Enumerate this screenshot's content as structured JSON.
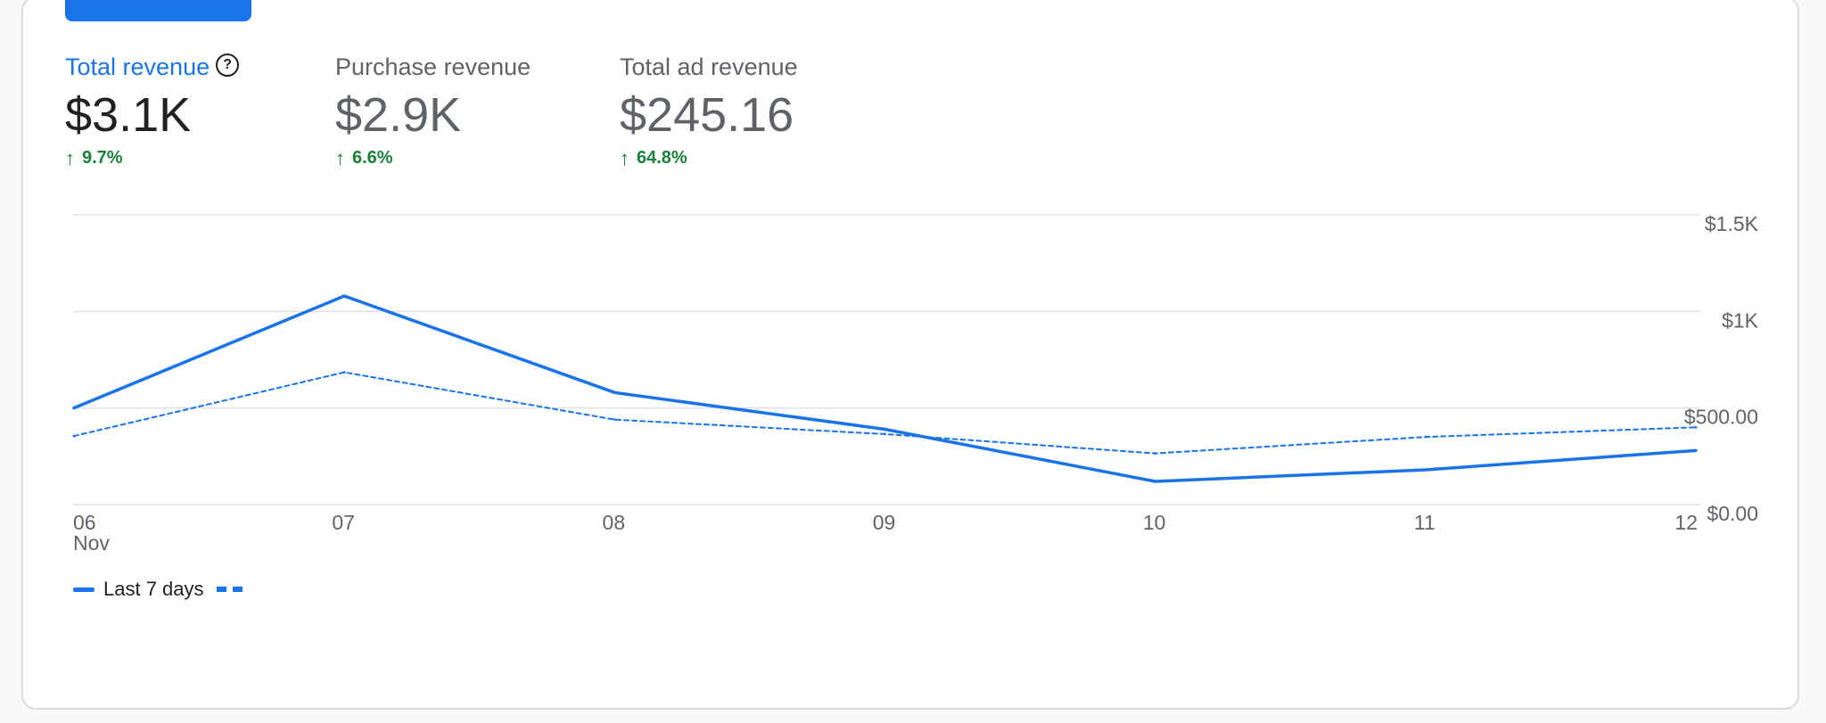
{
  "metrics": [
    {
      "label": "Total revenue",
      "value": "$3.1K",
      "change": "9.7%",
      "active": true
    },
    {
      "label": "Purchase revenue",
      "value": "$2.9K",
      "change": "6.6%",
      "active": false
    },
    {
      "label": "Total ad revenue",
      "value": "$245.16",
      "change": "64.8%",
      "active": false
    }
  ],
  "icons": {
    "help": "help-circle-icon",
    "trend": "arrow-up-icon"
  },
  "colors": {
    "accent": "#1a73e8",
    "positive": "#188038",
    "grid": "#e0e0e0",
    "text": "#202124",
    "muted": "#5f6368"
  },
  "legend": {
    "current_label": "Last 7 days"
  },
  "chart_data": {
    "type": "line",
    "categories": [
      "06",
      "07",
      "08",
      "09",
      "10",
      "11",
      "12"
    ],
    "x_tick_labels": [
      "06",
      "07",
      "08",
      "09",
      "10",
      "11",
      "12"
    ],
    "x_sublabel": "Nov",
    "y_tick_labels": [
      "$0.00",
      "$500.00",
      "$1K",
      "$1.5K"
    ],
    "y_ticks": [
      0,
      500,
      1000,
      1500
    ],
    "ylim": [
      0,
      1500
    ],
    "axis_position": "right",
    "grid": true,
    "legend_position": "bottom-left",
    "series": [
      {
        "name": "Last 7 days",
        "style": "solid",
        "values": [
          500,
          1080,
          580,
          390,
          120,
          180,
          280
        ]
      },
      {
        "style": "dashed",
        "values": [
          355,
          685,
          440,
          365,
          265,
          350,
          400
        ]
      }
    ]
  }
}
